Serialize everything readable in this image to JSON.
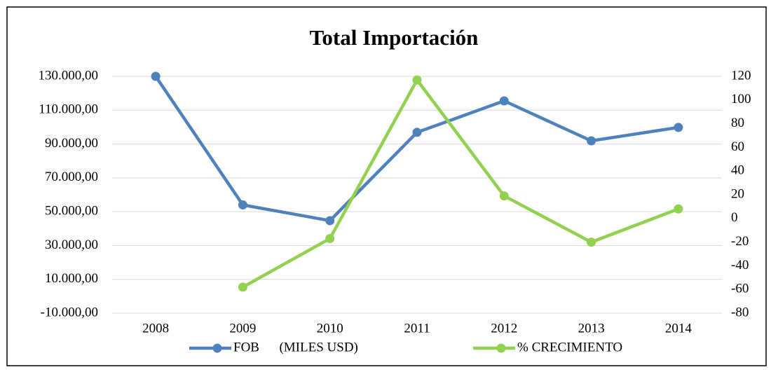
{
  "chart_data": {
    "type": "line",
    "title": "Total Importación",
    "categories": [
      "2008",
      "2009",
      "2010",
      "2011",
      "2012",
      "2013",
      "2014"
    ],
    "series": [
      {
        "name": "FOB      (MILES USD)",
        "color": "#4f81bd",
        "values": [
          130000,
          54000,
          44700,
          96900,
          115500,
          91900,
          99800
        ]
      },
      {
        "name": "% CRECIMIENTO",
        "color": "#92d050",
        "axis": "y2",
        "values": [
          null,
          -58,
          -17,
          117,
          19,
          -20,
          8
        ]
      }
    ],
    "ylim": [
      -10000,
      130000
    ],
    "yticks": [
      {
        "value": -10000,
        "label": "-10.000,00"
      },
      {
        "value": 10000,
        "label": "10.000,00"
      },
      {
        "value": 30000,
        "label": "30.000,00"
      },
      {
        "value": 50000,
        "label": "50.000,00"
      },
      {
        "value": 70000,
        "label": "70.000,00"
      },
      {
        "value": 90000,
        "label": "90.000,00"
      },
      {
        "value": 110000,
        "label": "110.000,00"
      },
      {
        "value": 130000,
        "label": "130.000,00"
      }
    ],
    "y2lim": [
      -80,
      120
    ],
    "y2ticks": [
      -80,
      -60,
      -40,
      -20,
      0,
      20,
      40,
      60,
      80,
      100,
      120
    ],
    "grid": true,
    "legend": "bottom"
  }
}
